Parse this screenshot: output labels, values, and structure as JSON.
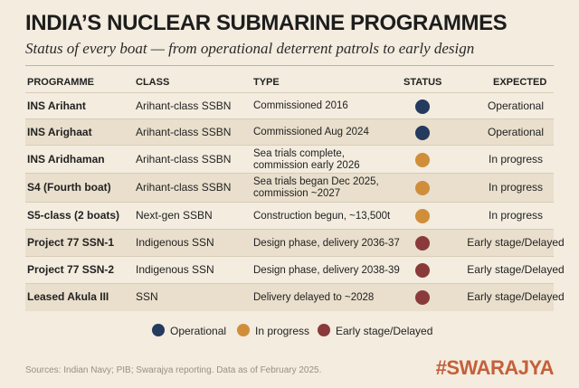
{
  "header": {
    "title": "INDIA’S NUCLEAR SUBMARINE PROGRAMMES",
    "subtitle": "Status of every boat — from operational deterrent patrols to early design"
  },
  "table": {
    "headers": [
      "PROGRAMME",
      "CLASS",
      "TYPE",
      "STATUS",
      "EXPECTED"
    ],
    "rows": [
      {
        "programme": "INS Arihant",
        "class": "Arihant-class SSBN",
        "type": [
          "Commissioned 2016"
        ],
        "expected": "Operational"
      },
      {
        "programme": "INS Arighaat",
        "class": "Arihant-class SSBN",
        "type": [
          "Commissioned Aug 2024"
        ],
        "expected": "Operational"
      },
      {
        "programme": "INS Aridhaman",
        "class": "Arihant-class SSBN",
        "type": [
          "Sea trials complete,",
          "commission early 2026"
        ],
        "expected": "In progress"
      },
      {
        "programme": "S4 (Fourth boat)",
        "class": "Arihant-class SSBN",
        "type": [
          "Sea trials began Dec 2025,",
          "commission ~2027"
        ],
        "expected": "In progress"
      },
      {
        "programme": "S5-class (2 boats)",
        "class": "Next-gen SSBN",
        "type": [
          "Construction begun, ~13,500t"
        ],
        "expected": "In progress"
      },
      {
        "programme": "Project 77 SSN-1",
        "class": "Indigenous SSN",
        "type": [
          "Design phase, delivery 2036-37"
        ],
        "expected": "Early stage/Delayed"
      },
      {
        "programme": "Project 77 SSN-2",
        "class": "Indigenous SSN",
        "type": [
          "Design phase, delivery 2038-39"
        ],
        "expected": "Early stage/Delayed"
      },
      {
        "programme": "Leased Akula III",
        "class": "SSN",
        "type": [
          "Delivery delayed to ~2028"
        ],
        "expected": "Early stage/Delayed"
      }
    ]
  },
  "legend": [
    {
      "name": "Operational",
      "color": "#243a5e"
    },
    {
      "name": "In progress",
      "color": "#d08e3b"
    },
    {
      "name": "Early stage/Delayed",
      "color": "#8a3a3b"
    }
  ],
  "footer": {
    "source": "Sources: Indian Navy; PIB; Swarajya reporting. Data as of February 2025.",
    "brand": "#SWARAJYA"
  }
}
